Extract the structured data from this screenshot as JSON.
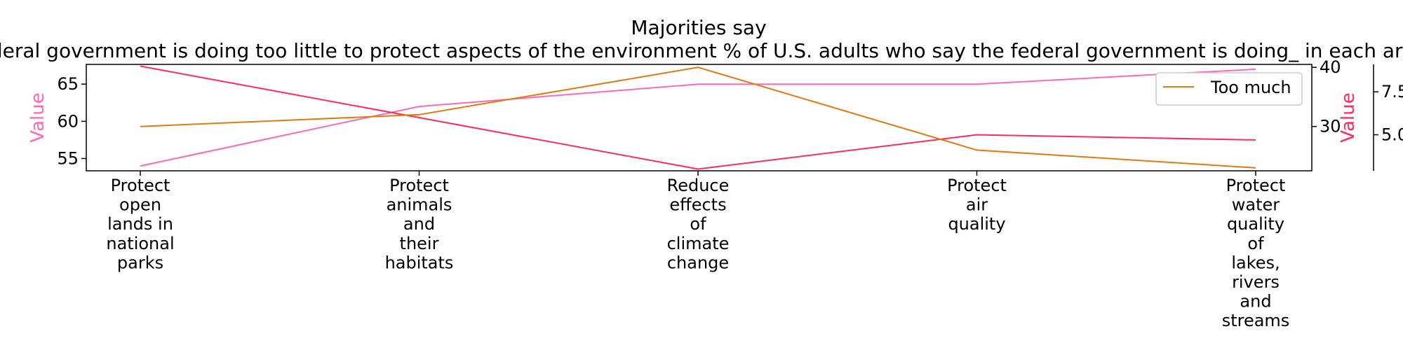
{
  "chart_data": {
    "type": "line",
    "title": "Majorities say federal government is doing too little to protect aspects of the environment % of U.S. adults who say the federal government is doing_ in each area",
    "categories": [
      "Protect open lands in national parks",
      "Protect animals and their habitats",
      "Reduce effects of climate change",
      "Protect air quality",
      "Protect water quality of lakes, rivers and streams"
    ],
    "category_lines": [
      [
        "Protect",
        "open",
        "lands in",
        "national",
        "parks"
      ],
      [
        "Protect",
        "animals",
        "and",
        "their",
        "habitats"
      ],
      [
        "Reduce",
        "effects",
        "of",
        "climate",
        "change"
      ],
      [
        "Protect",
        "air",
        "quality"
      ],
      [
        "Protect",
        "water",
        "quality",
        "of",
        "lakes,",
        "rivers",
        "and",
        "streams"
      ]
    ],
    "axes": [
      {
        "side": "left",
        "label": "Value",
        "color": "#ff69b4",
        "ylim": [
          53.35,
          67.65
        ],
        "ticks": [
          "55",
          "60",
          "65"
        ],
        "tick_values": [
          55,
          60,
          65
        ]
      },
      {
        "side": "right",
        "label": "Value",
        "color": "#ff2a5f",
        "ylim": [
          22.5,
          40.5
        ],
        "ticks": [
          "30",
          "40"
        ],
        "tick_values": [
          30,
          40
        ]
      },
      {
        "side": "right-outer",
        "label": "",
        "color": "#000000",
        "ylim": [
          2.9,
          9.1
        ],
        "ticks": [
          "5.0",
          "7.5"
        ],
        "tick_values": [
          5.0,
          7.5
        ]
      }
    ],
    "series": [
      {
        "axis": 0,
        "color": "#ff69b4",
        "values": [
          54,
          62,
          65,
          65,
          67
        ]
      },
      {
        "axis": 2,
        "color": "#ff2a5f",
        "values": [
          9,
          6,
          3,
          5,
          4.7
        ]
      },
      {
        "name": "Too much",
        "axis": 1,
        "color": "#e07b10",
        "values": [
          30,
          32,
          40,
          26,
          23
        ]
      }
    ],
    "legend": {
      "position": "top-right",
      "entries": [
        "Too much"
      ]
    }
  }
}
